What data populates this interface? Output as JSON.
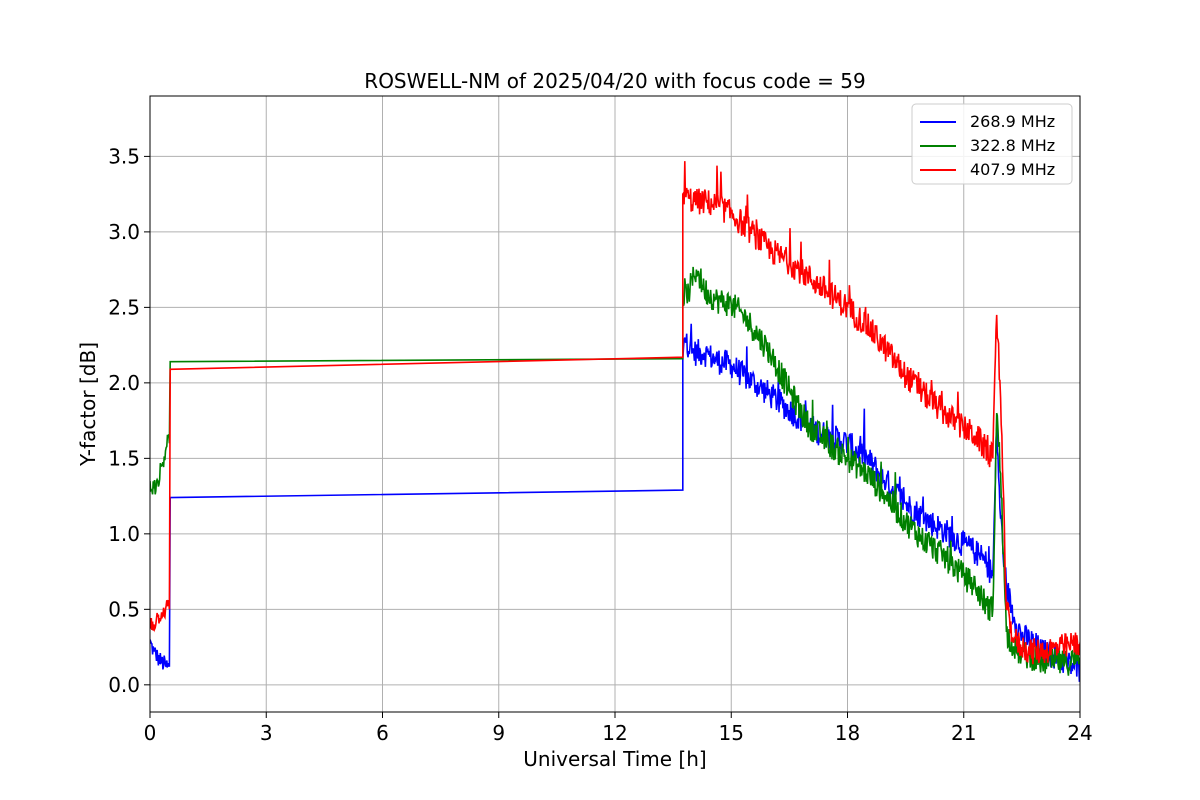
{
  "chart_data": {
    "type": "line",
    "title": "ROSWELL-NM of 2025/04/20 with focus code = 59",
    "xlabel": "Universal Time [h]",
    "ylabel": "Y-factor [dB]",
    "xlim": [
      0,
      24
    ],
    "ylim": [
      -0.18,
      3.9
    ],
    "xticks": [
      "0",
      "3",
      "6",
      "9",
      "12",
      "15",
      "18",
      "21",
      "24"
    ],
    "xtick_values": [
      0,
      3,
      6,
      9,
      12,
      15,
      18,
      21,
      24
    ],
    "yticks": [
      "0.0",
      "0.5",
      "1.0",
      "1.5",
      "2.0",
      "2.5",
      "3.0",
      "3.5"
    ],
    "ytick_values": [
      0,
      0.5,
      1.0,
      1.5,
      2.0,
      2.5,
      3.0,
      3.5
    ],
    "grid": true,
    "legend_position": "top-right",
    "series": [
      {
        "name": "268.9 MHz",
        "color": "#0000ff",
        "x": [
          0,
          0.1,
          0.2,
          0.3,
          0.4,
          0.45,
          0.5,
          0.52,
          13.75,
          13.75,
          13.8,
          14.0,
          14.3,
          14.6,
          15.0,
          15.3,
          15.6,
          16.0,
          16.5,
          17.0,
          17.2,
          17.5,
          18.0,
          18.5,
          19.0,
          19.5,
          20.0,
          20.5,
          21.0,
          21.3,
          21.6,
          21.75,
          21.85,
          21.95,
          22.1,
          22.3,
          22.5,
          22.8,
          23.0,
          23.3,
          23.6,
          24.0
        ],
        "y": [
          0.28,
          0.22,
          0.18,
          0.15,
          0.13,
          0.12,
          0.12,
          1.24,
          1.29,
          2.15,
          2.3,
          2.2,
          2.2,
          2.15,
          2.12,
          2.05,
          2.0,
          1.92,
          1.82,
          1.72,
          1.68,
          1.65,
          1.6,
          1.5,
          1.35,
          1.2,
          1.1,
          1.02,
          0.93,
          0.88,
          0.8,
          0.72,
          1.7,
          1.1,
          0.65,
          0.45,
          0.32,
          0.28,
          0.22,
          0.2,
          0.15,
          0.1
        ]
      },
      {
        "name": "322.8 MHz",
        "color": "#008000",
        "x": [
          0,
          0.1,
          0.2,
          0.3,
          0.4,
          0.45,
          0.5,
          0.52,
          13.75,
          13.75,
          13.9,
          14.1,
          14.3,
          14.6,
          15.0,
          15.3,
          15.6,
          16.0,
          16.5,
          17.0,
          17.5,
          18.0,
          18.5,
          19.0,
          19.5,
          20.0,
          20.5,
          21.0,
          21.3,
          21.6,
          21.75,
          21.85,
          21.95,
          22.1,
          22.3,
          22.5,
          22.8,
          23.0,
          23.3,
          23.6,
          24.0
        ],
        "y": [
          1.35,
          1.3,
          1.35,
          1.45,
          1.55,
          1.65,
          1.6,
          2.14,
          2.16,
          2.55,
          2.6,
          2.75,
          2.62,
          2.55,
          2.52,
          2.45,
          2.35,
          2.2,
          1.95,
          1.72,
          1.6,
          1.5,
          1.4,
          1.25,
          1.08,
          0.95,
          0.85,
          0.72,
          0.65,
          0.52,
          0.5,
          1.8,
          1.4,
          0.35,
          0.25,
          0.2,
          0.18,
          0.15,
          0.15,
          0.14,
          0.18
        ]
      },
      {
        "name": "407.9 MHz",
        "color": "#ff0000",
        "x": [
          0,
          0.1,
          0.2,
          0.3,
          0.4,
          0.45,
          0.5,
          0.52,
          13.75,
          13.75,
          13.9,
          14.1,
          14.3,
          14.6,
          15.0,
          15.3,
          15.6,
          16.0,
          16.5,
          17.0,
          17.5,
          18.0,
          18.5,
          19.0,
          19.5,
          20.0,
          20.5,
          21.0,
          21.3,
          21.6,
          21.75,
          21.85,
          21.95,
          22.1,
          22.3,
          22.5,
          22.8,
          23.0,
          23.3,
          23.6,
          24.0
        ],
        "y": [
          0.42,
          0.4,
          0.45,
          0.48,
          0.5,
          0.52,
          0.5,
          2.09,
          2.17,
          3.25,
          3.22,
          3.2,
          3.2,
          3.18,
          3.12,
          3.05,
          2.98,
          2.88,
          2.8,
          2.7,
          2.6,
          2.5,
          2.38,
          2.22,
          2.05,
          1.92,
          1.8,
          1.7,
          1.65,
          1.55,
          1.5,
          2.45,
          1.9,
          0.5,
          0.3,
          0.25,
          0.22,
          0.22,
          0.24,
          0.25,
          0.28
        ]
      }
    ]
  }
}
